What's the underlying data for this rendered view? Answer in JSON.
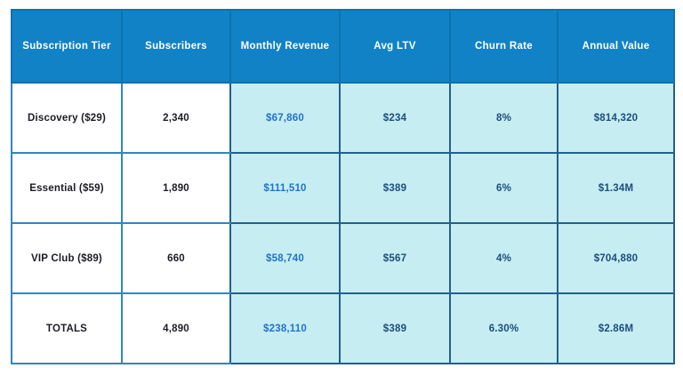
{
  "title": "Subscription tier metrics table",
  "colors": {
    "header_bg": "#1182c5",
    "header_text": "#ffffff",
    "cyan_cell_bg": "#c6edf2",
    "cyan_cell_border": "#235f8e",
    "white_cell_border": "#2e86c5",
    "revenue_text": "#2273cb",
    "metric_text": "#1c4e7c",
    "tier_text": "#1c1c26"
  },
  "table": {
    "headers": [
      "Subscription Tier",
      "Subscribers",
      "Monthly Revenue",
      "Avg LTV",
      "Churn Rate",
      "Annual Value"
    ],
    "rows": [
      {
        "tier": "Discovery ($29)",
        "subscribers": "2,340",
        "monthly_revenue": "$67,860",
        "avg_ltv": "$234",
        "churn_rate": "8%",
        "annual_value": "$814,320"
      },
      {
        "tier": "Essential ($59)",
        "subscribers": "1,890",
        "monthly_revenue": "$111,510",
        "avg_ltv": "$389",
        "churn_rate": "6%",
        "annual_value": "$1.34M"
      },
      {
        "tier": "VIP Club ($89)",
        "subscribers": "660",
        "monthly_revenue": "$58,740",
        "avg_ltv": "$567",
        "churn_rate": "4%",
        "annual_value": "$704,880"
      },
      {
        "tier": "TOTALS",
        "subscribers": "4,890",
        "monthly_revenue": "$238,110",
        "avg_ltv": "$389",
        "churn_rate": "6.30%",
        "annual_value": "$2.86M"
      }
    ]
  },
  "chart_data": {
    "type": "table",
    "title": "Subscription tier metrics",
    "columns": [
      "Subscription Tier",
      "Subscribers",
      "Monthly Revenue",
      "Avg LTV",
      "Churn Rate",
      "Annual Value"
    ],
    "rows": [
      [
        "Discovery ($29)",
        2340,
        67860,
        234,
        0.08,
        814320
      ],
      [
        "Essential ($59)",
        1890,
        111510,
        389,
        0.06,
        1340000
      ],
      [
        "VIP Club ($89)",
        660,
        58740,
        567,
        0.04,
        704880
      ],
      [
        "TOTALS",
        4890,
        238110,
        389,
        0.063,
        2860000
      ]
    ]
  }
}
